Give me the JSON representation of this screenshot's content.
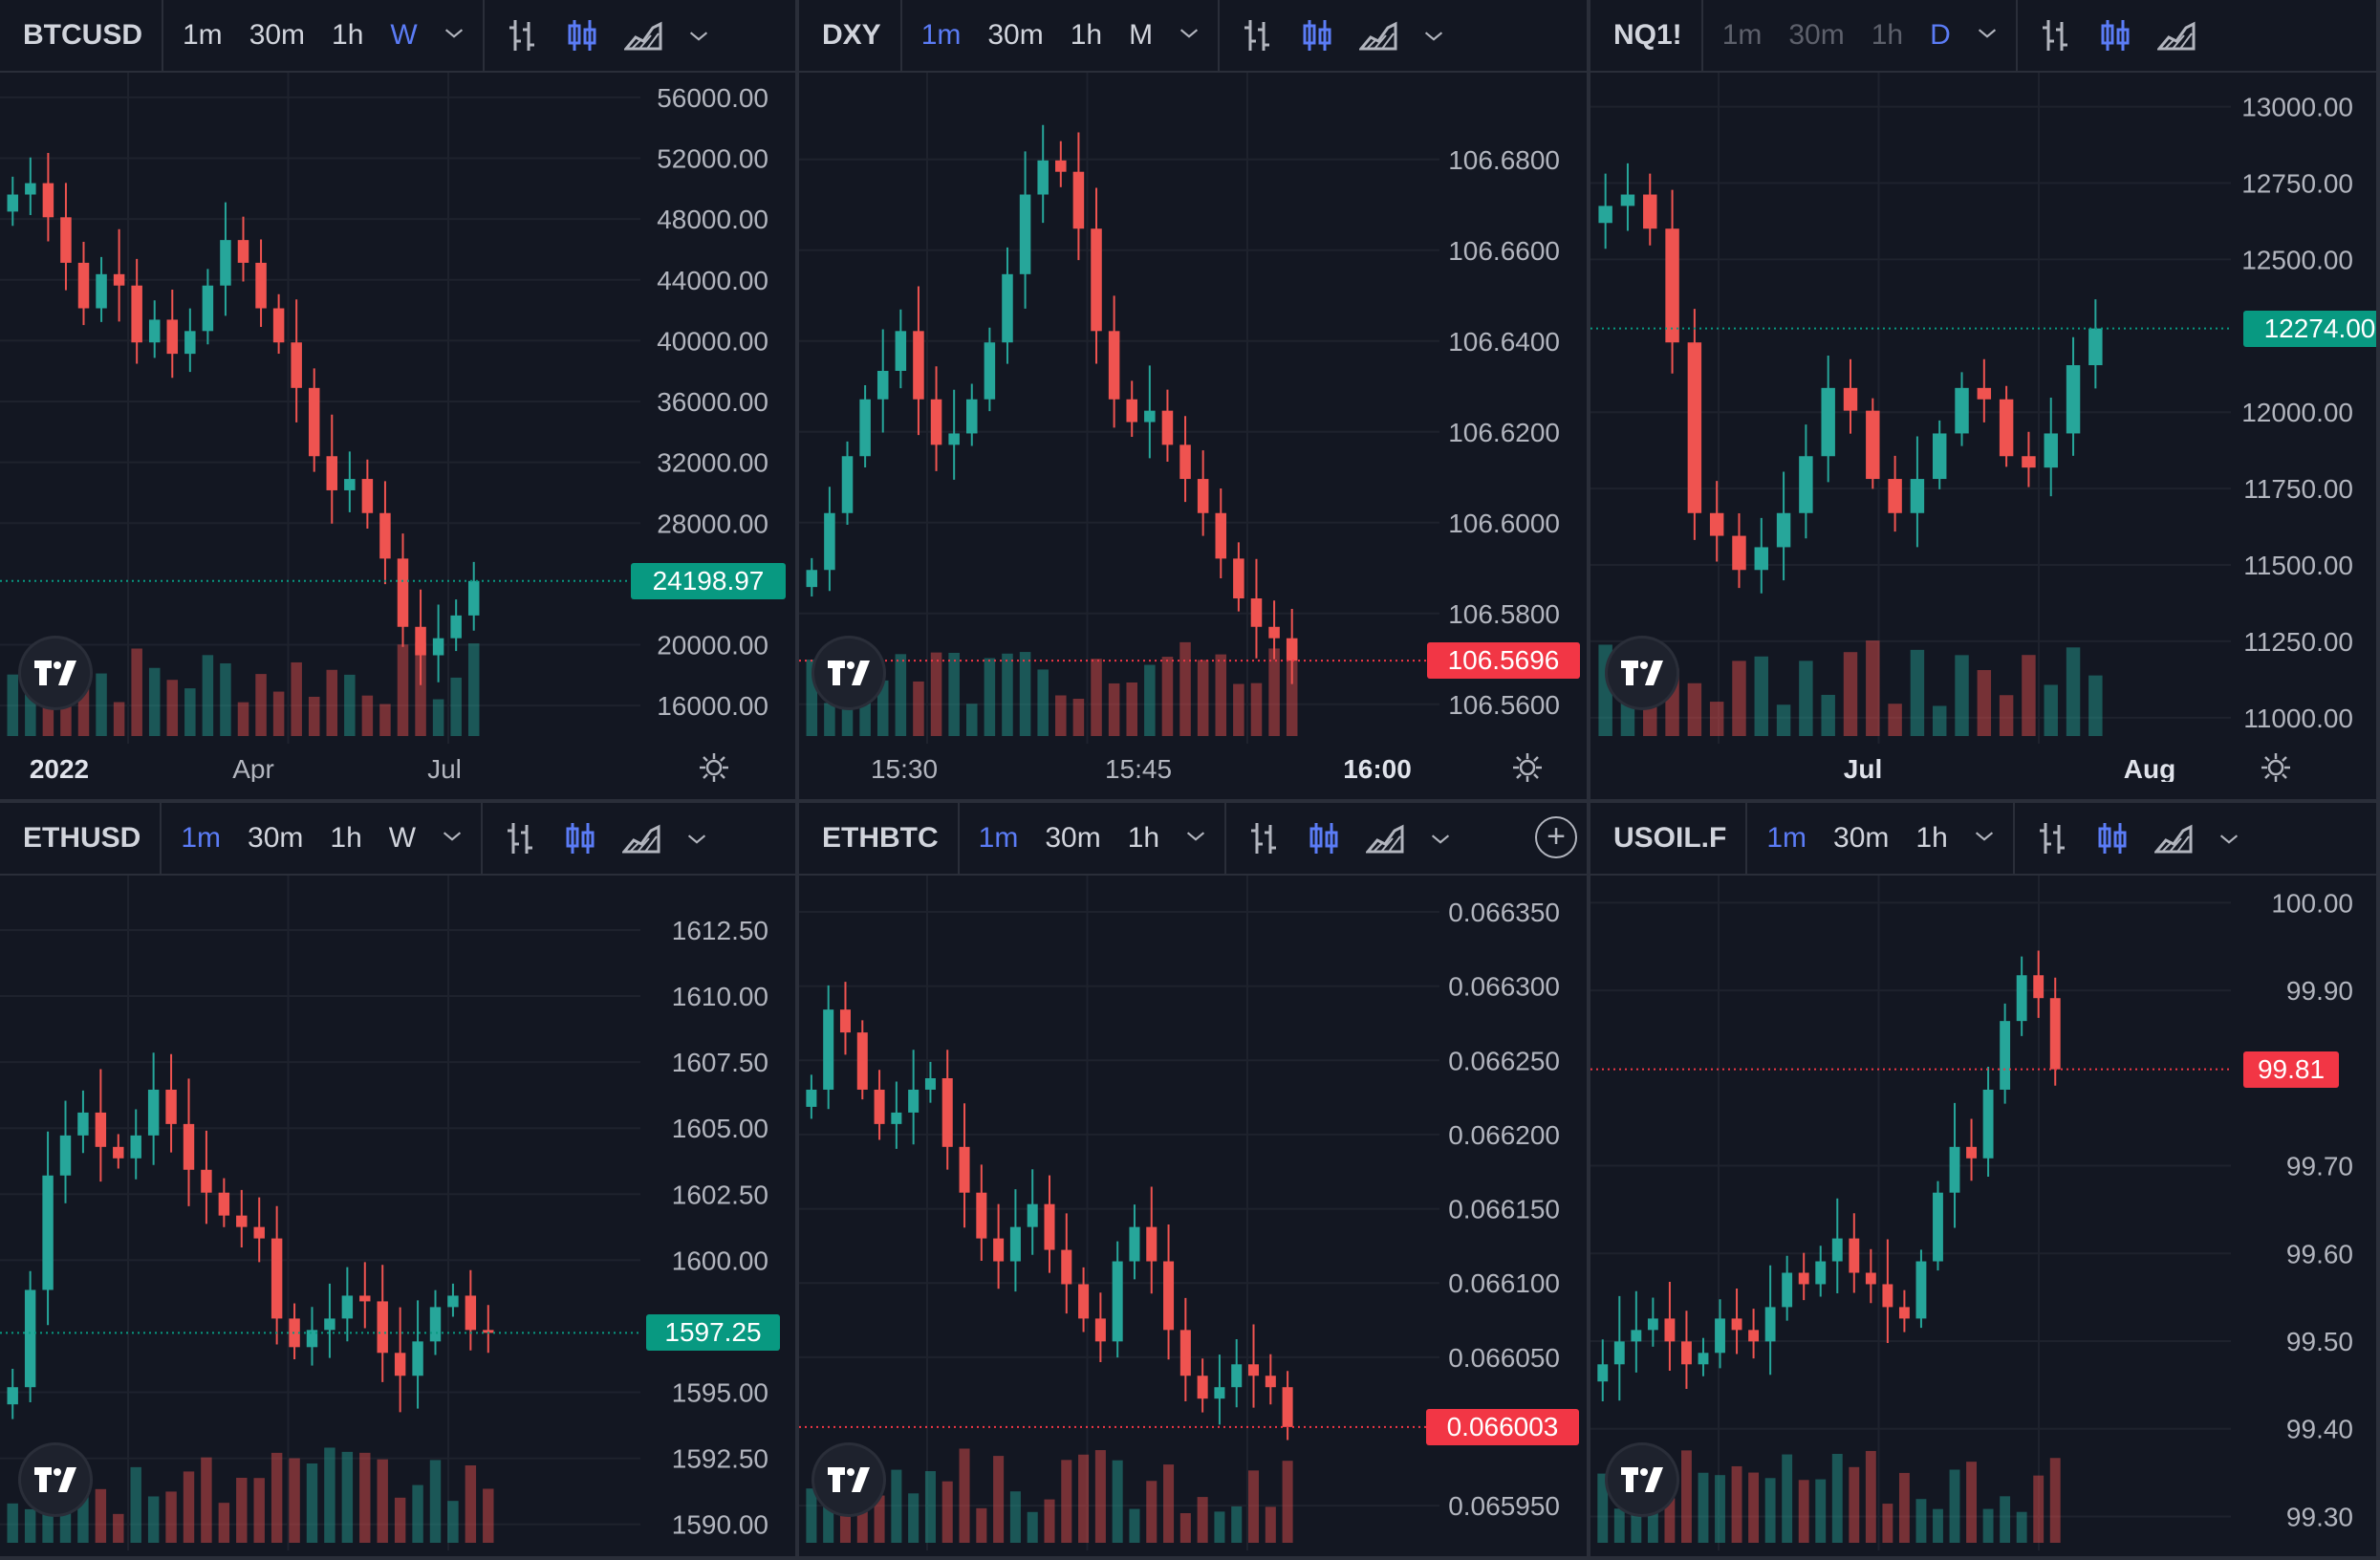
{
  "colors": {
    "up": "#26a69a",
    "down": "#ef5350",
    "background": "#131722",
    "grid": "#1e222d",
    "accent": "#5b7cf6"
  },
  "panes": [
    {
      "symbol": "BTCUSD",
      "timeframes": [
        {
          "label": "1m",
          "active": false,
          "dim": false
        },
        {
          "label": "30m",
          "active": false,
          "dim": false
        },
        {
          "label": "1h",
          "active": false,
          "dim": false
        },
        {
          "label": "W",
          "active": true,
          "dim": false
        }
      ],
      "toolbar_icons": [
        "bar-chart-icon",
        "candlestick-icon",
        "area-chart-icon",
        "chevron-down-icon"
      ],
      "y_ticks": [
        "56000.00",
        "52000.00",
        "48000.00",
        "44000.00",
        "40000.00",
        "36000.00",
        "32000.00",
        "28000.00",
        "20000.00",
        "16000.00"
      ],
      "y_tick_values": [
        56000,
        52000,
        48000,
        44000,
        40000,
        36000,
        32000,
        28000,
        20000,
        16000
      ],
      "y_range": [
        14000,
        57000
      ],
      "price_label": "24198.97",
      "price_value": 24198.97,
      "price_color": "#089981",
      "x_labels": [
        {
          "t": "2022",
          "bold": true
        },
        {
          "t": "Apr",
          "bold": false
        },
        {
          "t": "Jul",
          "bold": false
        }
      ],
      "show_add": false
    },
    {
      "symbol": "DXY",
      "timeframes": [
        {
          "label": "1m",
          "active": true,
          "dim": false
        },
        {
          "label": "30m",
          "active": false,
          "dim": false
        },
        {
          "label": "1h",
          "active": false,
          "dim": false
        },
        {
          "label": "M",
          "active": false,
          "dim": false
        }
      ],
      "toolbar_icons": [
        "bar-chart-icon",
        "candlestick-icon",
        "area-chart-icon",
        "chevron-down-icon"
      ],
      "y_ticks": [
        "106.6800",
        "106.6600",
        "106.6400",
        "106.6200",
        "106.6000",
        "106.5800",
        "106.5600"
      ],
      "y_tick_values": [
        106.68,
        106.66,
        106.64,
        106.62,
        106.6,
        106.58,
        106.56
      ],
      "y_range": [
        106.553,
        106.697
      ],
      "price_label": "106.5696",
      "price_value": 106.5696,
      "price_color": "#f23645",
      "x_labels": [
        {
          "t": "15:30",
          "bold": false
        },
        {
          "t": "15:45",
          "bold": false
        },
        {
          "t": "16:00",
          "bold": true
        }
      ],
      "show_add": false
    },
    {
      "symbol": "NQ1!",
      "timeframes": [
        {
          "label": "1m",
          "active": false,
          "dim": true
        },
        {
          "label": "30m",
          "active": false,
          "dim": true
        },
        {
          "label": "1h",
          "active": false,
          "dim": true
        },
        {
          "label": "D",
          "active": true,
          "dim": true
        }
      ],
      "toolbar_icons": [
        "bar-chart-icon",
        "candlestick-icon",
        "area-chart-icon"
      ],
      "y_ticks": [
        "13000.00",
        "12750.00",
        "12500.00",
        "12274.00",
        "12000.00",
        "11750.00",
        "11500.00",
        "11250.00",
        "11000.00"
      ],
      "y_tick_values": [
        13000,
        12750,
        12500,
        12274,
        12000,
        11750,
        11500,
        11250,
        11000
      ],
      "y_range": [
        10940,
        13080
      ],
      "price_label": "12274.00",
      "price_value": 12274,
      "price_color": "#089981",
      "x_labels": [
        {
          "t": "Jul",
          "bold": true
        },
        {
          "t": "Aug",
          "bold": true
        }
      ],
      "show_add": false
    },
    {
      "symbol": "ETHUSD",
      "timeframes": [
        {
          "label": "1m",
          "active": true,
          "dim": false
        },
        {
          "label": "30m",
          "active": false,
          "dim": false
        },
        {
          "label": "1h",
          "active": false,
          "dim": false
        },
        {
          "label": "W",
          "active": false,
          "dim": false
        }
      ],
      "toolbar_icons": [
        "bar-chart-icon",
        "candlestick-icon",
        "area-chart-icon",
        "chevron-down-icon"
      ],
      "y_ticks": [
        "1612.50",
        "1610.00",
        "1607.50",
        "1605.00",
        "1602.50",
        "1600.00",
        "1597.25",
        "1595.00",
        "1592.50",
        "1590.00"
      ],
      "y_tick_values": [
        1612.5,
        1610,
        1607.5,
        1605,
        1602.5,
        1600,
        1597.25,
        1595,
        1592.5,
        1590
      ],
      "y_range": [
        1589.3,
        1614.2
      ],
      "price_label": "1597.25",
      "price_value": 1597.25,
      "price_color": "#089981",
      "x_labels": [],
      "show_add": false
    },
    {
      "symbol": "ETHBTC",
      "timeframes": [
        {
          "label": "1m",
          "active": true,
          "dim": false
        },
        {
          "label": "30m",
          "active": false,
          "dim": false
        },
        {
          "label": "1h",
          "active": false,
          "dim": false
        }
      ],
      "toolbar_icons": [
        "bar-chart-icon",
        "candlestick-icon",
        "area-chart-icon",
        "chevron-down-icon"
      ],
      "y_ticks": [
        "0.066350",
        "0.066300",
        "0.066250",
        "0.066200",
        "0.066150",
        "0.066100",
        "0.066050",
        "0.066003",
        "0.065950"
      ],
      "y_tick_values": [
        0.06635,
        0.0663,
        0.06625,
        0.0662,
        0.06615,
        0.0661,
        0.06605,
        0.066003,
        0.06595
      ],
      "y_range": [
        0.065925,
        0.066368
      ],
      "price_label": "0.066003",
      "price_value": 0.066003,
      "price_color": "#f23645",
      "x_labels": [],
      "show_add": true
    },
    {
      "symbol": "USOIL.F",
      "timeframes": [
        {
          "label": "1m",
          "active": true,
          "dim": false
        },
        {
          "label": "30m",
          "active": false,
          "dim": false
        },
        {
          "label": "1h",
          "active": false,
          "dim": false
        }
      ],
      "toolbar_icons": [
        "bar-chart-icon",
        "candlestick-icon",
        "area-chart-icon",
        "chevron-down-icon"
      ],
      "y_ticks": [
        "100.00",
        "99.90",
        "99.81",
        "99.70",
        "99.60",
        "99.50",
        "99.40",
        "99.30"
      ],
      "y_tick_values": [
        100.0,
        99.9,
        99.81,
        99.7,
        99.6,
        99.5,
        99.4,
        99.3
      ],
      "y_range": [
        99.27,
        100.02
      ],
      "price_label": "99.81",
      "price_value": 99.81,
      "price_color": "#f23645",
      "x_labels": [],
      "show_add": false
    }
  ]
}
